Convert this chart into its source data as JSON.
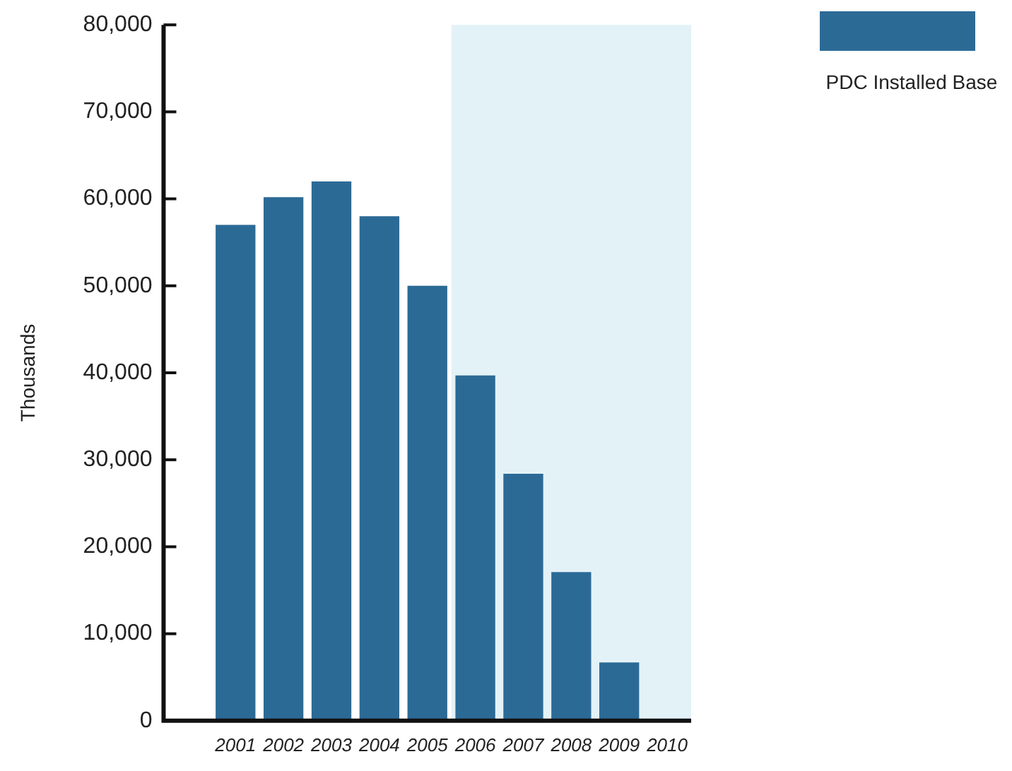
{
  "chart_data": {
    "type": "bar",
    "ylabel": "Thousands",
    "categories": [
      null,
      "2001",
      "2002",
      "2003",
      "2004",
      "2005",
      "2006",
      "2007",
      "2008",
      "2009",
      "2010"
    ],
    "series": [
      {
        "name": "PDC Installed Base",
        "color": "#2c6a96",
        "values": [
          null,
          57000,
          60200,
          62000,
          58000,
          50000,
          39700,
          28400,
          17100,
          6700,
          null
        ]
      }
    ],
    "ylim": [
      0,
      80000
    ],
    "yticks": [
      {
        "value": 0,
        "label": "0"
      },
      {
        "value": 10000,
        "label": "10,000"
      },
      {
        "value": 20000,
        "label": "20,000"
      },
      {
        "value": 30000,
        "label": "30,000"
      },
      {
        "value": 40000,
        "label": "40,000"
      },
      {
        "value": 50000,
        "label": "50,000"
      },
      {
        "value": 60000,
        "label": "60,000"
      },
      {
        "value": 70000,
        "label": "70,000"
      },
      {
        "value": 80000,
        "label": "80,000"
      }
    ],
    "bands": [
      {
        "axis": "x",
        "from": "2006",
        "to": "2010",
        "color": "#e3f2f7"
      }
    ],
    "grid": false,
    "legend": "top right"
  }
}
